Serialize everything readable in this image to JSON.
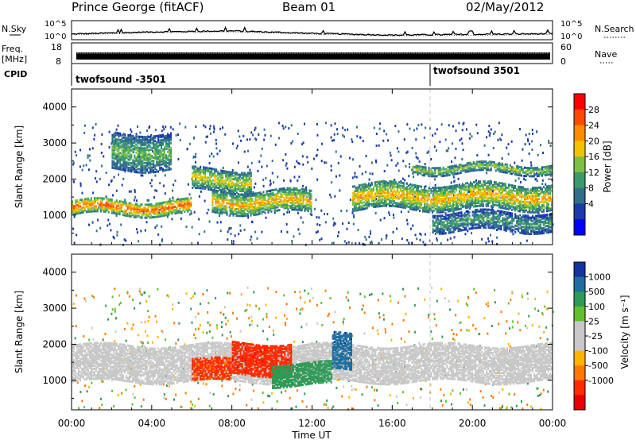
{
  "header": {
    "station": "Prince George (fitACF)",
    "beam": "Beam 01",
    "date": "02/May/2012"
  },
  "labels": {
    "nsky": "N.Sky",
    "freq": "Freq.",
    "mhz": "[MHz]",
    "cpid": "CPID",
    "nsearch": "N.Search",
    "nave": "Nave",
    "time_axis": "Time UT"
  },
  "noise_axis": {
    "top": "10^5",
    "bottom": "10^0"
  },
  "freq_axis": {
    "top": "18",
    "bottom": "8"
  },
  "nave_axis": {
    "top": "60",
    "bottom": "0"
  },
  "cpid_segments": [
    {
      "label": "twofsound -3501",
      "start": "00:00"
    },
    {
      "label": "twofsound 3501",
      "start": "18:00"
    }
  ],
  "power_colorbar": {
    "label": "Power [dB]",
    "ticks": [
      "28",
      "24",
      "20",
      "16",
      "12",
      "8",
      "4"
    ],
    "colors": [
      "#0000ff",
      "#1a3aa8",
      "#2f6f8a",
      "#3a9a6a",
      "#7bc043",
      "#f2c200",
      "#ff8c00",
      "#ff4a00",
      "#ff0000"
    ]
  },
  "velocity_colorbar": {
    "label": "Velocity [m s⁻¹]",
    "ticks": [
      "1000",
      "500",
      "100",
      "25",
      "-25",
      "-100",
      "-500",
      "-1000"
    ],
    "colors": [
      "#1432a0",
      "#1e6ea0",
      "#2e9a56",
      "#60c030",
      "#c8c8c8",
      "#c8c8c8",
      "#ffb400",
      "#ff7800",
      "#ff2a00",
      "#e60000"
    ]
  },
  "chart_data": [
    {
      "type": "line",
      "title": "N.Sky / N.Search",
      "x": [
        "00:00",
        "04:00",
        "08:00",
        "12:00",
        "16:00",
        "20:00",
        "00:00"
      ],
      "series": [
        {
          "name": "N.Sky",
          "values": [
            1.4,
            2.0,
            2.3,
            1.6,
            1.1,
            1.3,
            1.5
          ]
        }
      ],
      "yscale": "log",
      "ylim": [
        "10^0",
        "10^5"
      ]
    },
    {
      "type": "heatmap",
      "title": "Power",
      "xlabel": "Time UT",
      "ylabel": "Slant Range [km]",
      "xticks": [
        "00:00",
        "04:00",
        "08:00",
        "12:00",
        "16:00",
        "20:00",
        "00:00"
      ],
      "yticks": [
        1000,
        2000,
        3000,
        4000
      ],
      "ylim": [
        180,
        4500
      ],
      "zlabel": "Power [dB]",
      "zticks": [
        4,
        8,
        12,
        16,
        20,
        24,
        28
      ],
      "bands": [
        {
          "t": [
            0,
            6
          ],
          "range": [
            1050,
            1450
          ],
          "power": 22
        },
        {
          "t": [
            6,
            9
          ],
          "range": [
            1700,
            2300
          ],
          "power": 16
        },
        {
          "t": [
            7,
            12
          ],
          "range": [
            1100,
            1700
          ],
          "power": 18
        },
        {
          "t": [
            2,
            5
          ],
          "range": [
            2300,
            3300
          ],
          "power": 12
        },
        {
          "t": [
            14,
            24
          ],
          "range": [
            1200,
            1900
          ],
          "power": 18
        },
        {
          "t": [
            17,
            24
          ],
          "range": [
            2200,
            2450
          ],
          "power": 14
        },
        {
          "t": [
            18,
            24
          ],
          "range": [
            600,
            1100
          ],
          "power": 10
        }
      ]
    },
    {
      "type": "heatmap",
      "title": "Velocity",
      "xlabel": "Time UT",
      "ylabel": "Slant Range [km]",
      "xticks": [
        "00:00",
        "04:00",
        "08:00",
        "12:00",
        "16:00",
        "20:00",
        "00:00"
      ],
      "yticks": [
        1000,
        2000,
        3000,
        4000
      ],
      "ylim": [
        180,
        4500
      ],
      "zlabel": "Velocity [m s⁻¹]",
      "zticks": [
        1000,
        500,
        100,
        25,
        -25,
        -100,
        -500,
        -1000
      ],
      "bands": [
        {
          "t": [
            0,
            24
          ],
          "range": [
            1000,
            2000
          ],
          "velocity": 0
        },
        {
          "t": [
            6,
            8
          ],
          "range": [
            1000,
            1600
          ],
          "velocity": -600
        },
        {
          "t": [
            8,
            11
          ],
          "range": [
            1200,
            2100
          ],
          "velocity": -800
        },
        {
          "t": [
            10,
            13
          ],
          "range": [
            900,
            1500
          ],
          "velocity": 300
        },
        {
          "t": [
            13,
            14
          ],
          "range": [
            1300,
            2300
          ],
          "velocity": 800
        }
      ]
    }
  ]
}
